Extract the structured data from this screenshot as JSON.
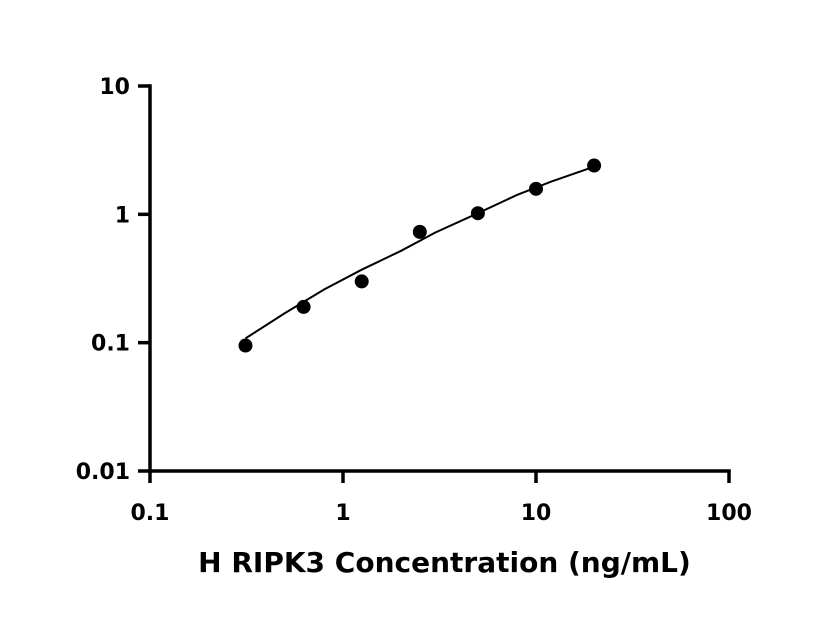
{
  "chart_data": {
    "type": "scatter",
    "title": "",
    "xlabel": "H RIPK3 Concentration (ng/mL)",
    "ylabel": "",
    "x_scale": "log",
    "y_scale": "log",
    "xlim": [
      0.1,
      100
    ],
    "ylim": [
      0.01,
      10
    ],
    "x_ticks": [
      0.1,
      1,
      10,
      100
    ],
    "x_tick_labels": [
      "0.1",
      "1",
      "10",
      "100"
    ],
    "y_ticks": [
      0.01,
      0.1,
      1,
      10
    ],
    "y_tick_labels": [
      "0.01",
      "0.1",
      "1",
      "10"
    ],
    "grid": false,
    "legend": "none",
    "series": [
      {
        "x": [
          0.3125,
          0.625,
          1.25,
          2.5,
          5,
          10,
          20
        ],
        "y": [
          0.095,
          0.19,
          0.3,
          0.73,
          1.02,
          1.58,
          2.4
        ],
        "marker": "circle",
        "color": "#000000"
      }
    ],
    "fit_curve": {
      "x": [
        0.3125,
        0.5,
        0.8,
        1.25,
        2,
        3,
        5,
        8,
        12,
        20
      ],
      "y": [
        0.108,
        0.17,
        0.26,
        0.37,
        0.52,
        0.72,
        1.02,
        1.42,
        1.8,
        2.35
      ],
      "color": "#000000"
    }
  }
}
